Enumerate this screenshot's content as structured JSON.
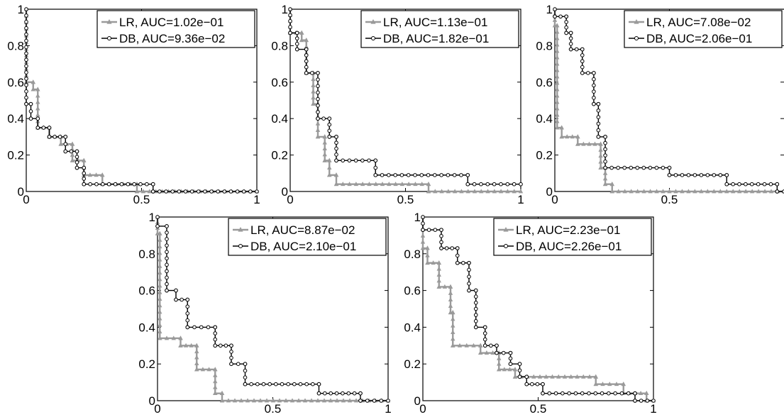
{
  "chart_data": [
    {
      "type": "line",
      "xlim": [
        0,
        1
      ],
      "ylim": [
        0,
        1
      ],
      "xticks": [
        "0",
        "0.5",
        "1"
      ],
      "yticks": [
        "0",
        "0.2",
        "0.4",
        "0.6",
        "0.8",
        "1"
      ],
      "legend_position": "top-right",
      "series": [
        {
          "name": "LR, AUC=1.02e−01",
          "color": "#9a9a9a",
          "marker": "triangle",
          "points": [
            [
              0,
              1
            ],
            [
              0,
              0.6
            ],
            [
              0.03,
              0.6
            ],
            [
              0.03,
              0.56
            ],
            [
              0.05,
              0.56
            ],
            [
              0.05,
              0.35
            ],
            [
              0.1,
              0.35
            ],
            [
              0.1,
              0.3
            ],
            [
              0.15,
              0.3
            ],
            [
              0.15,
              0.26
            ],
            [
              0.2,
              0.26
            ],
            [
              0.2,
              0.17
            ],
            [
              0.25,
              0.17
            ],
            [
              0.25,
              0.09
            ],
            [
              0.33,
              0.09
            ],
            [
              0.33,
              0.04
            ],
            [
              0.48,
              0.04
            ],
            [
              0.48,
              0
            ],
            [
              1,
              0
            ]
          ]
        },
        {
          "name": "DB, AUC=9.36e−02",
          "color": "#000000",
          "marker": "circle",
          "points": [
            [
              0,
              1
            ],
            [
              0,
              0.48
            ],
            [
              0.02,
              0.48
            ],
            [
              0.02,
              0.4
            ],
            [
              0.05,
              0.4
            ],
            [
              0.05,
              0.35
            ],
            [
              0.1,
              0.35
            ],
            [
              0.1,
              0.3
            ],
            [
              0.17,
              0.3
            ],
            [
              0.17,
              0.22
            ],
            [
              0.22,
              0.22
            ],
            [
              0.22,
              0.13
            ],
            [
              0.25,
              0.13
            ],
            [
              0.25,
              0.04
            ],
            [
              0.55,
              0.04
            ],
            [
              0.55,
              0
            ],
            [
              1,
              0
            ]
          ]
        }
      ]
    },
    {
      "type": "line",
      "xlim": [
        0,
        1
      ],
      "ylim": [
        0,
        1
      ],
      "xticks": [
        "0",
        "0.5",
        "1"
      ],
      "yticks": [
        "0",
        "0.2",
        "0.4",
        "0.6",
        "0.8",
        "1"
      ],
      "legend_position": "top-right",
      "series": [
        {
          "name": "LR, AUC=1.13e−01",
          "color": "#9a9a9a",
          "marker": "triangle",
          "points": [
            [
              0,
              1
            ],
            [
              0,
              0.87
            ],
            [
              0.05,
              0.87
            ],
            [
              0.05,
              0.83
            ],
            [
              0.07,
              0.83
            ],
            [
              0.07,
              0.65
            ],
            [
              0.1,
              0.65
            ],
            [
              0.1,
              0.48
            ],
            [
              0.12,
              0.48
            ],
            [
              0.12,
              0.3
            ],
            [
              0.15,
              0.3
            ],
            [
              0.15,
              0.17
            ],
            [
              0.17,
              0.17
            ],
            [
              0.17,
              0.09
            ],
            [
              0.2,
              0.09
            ],
            [
              0.2,
              0.04
            ],
            [
              0.6,
              0.04
            ],
            [
              0.6,
              0
            ],
            [
              1,
              0
            ]
          ]
        },
        {
          "name": "DB, AUC=1.82e−01",
          "color": "#000000",
          "marker": "circle",
          "points": [
            [
              0,
              1
            ],
            [
              0,
              0.87
            ],
            [
              0.03,
              0.87
            ],
            [
              0.03,
              0.78
            ],
            [
              0.07,
              0.78
            ],
            [
              0.07,
              0.65
            ],
            [
              0.12,
              0.65
            ],
            [
              0.12,
              0.4
            ],
            [
              0.17,
              0.4
            ],
            [
              0.17,
              0.3
            ],
            [
              0.2,
              0.3
            ],
            [
              0.2,
              0.17
            ],
            [
              0.37,
              0.17
            ],
            [
              0.37,
              0.09
            ],
            [
              0.77,
              0.09
            ],
            [
              0.77,
              0.04
            ],
            [
              1,
              0.04
            ]
          ]
        }
      ]
    },
    {
      "type": "line",
      "xlim": [
        0,
        1
      ],
      "ylim": [
        0,
        1
      ],
      "xticks": [
        "0",
        "0.5"
      ],
      "yticks": [
        "0",
        "0.2",
        "0.4",
        "0.6",
        "0.8",
        "1"
      ],
      "legend_position": "top-right",
      "series": [
        {
          "name": "LR, AUC=7.08e−02",
          "color": "#9a9a9a",
          "marker": "triangle",
          "points": [
            [
              0,
              1
            ],
            [
              0,
              0.91
            ],
            [
              0.01,
              0.91
            ],
            [
              0.01,
              0.35
            ],
            [
              0.03,
              0.35
            ],
            [
              0.03,
              0.3
            ],
            [
              0.1,
              0.3
            ],
            [
              0.1,
              0.26
            ],
            [
              0.2,
              0.26
            ],
            [
              0.2,
              0.13
            ],
            [
              0.22,
              0.13
            ],
            [
              0.22,
              0.04
            ],
            [
              0.25,
              0.04
            ],
            [
              0.25,
              0
            ],
            [
              1,
              0
            ]
          ]
        },
        {
          "name": "DB, AUC=2.06e−01",
          "color": "#000000",
          "marker": "circle",
          "points": [
            [
              0,
              1
            ],
            [
              0,
              0.96
            ],
            [
              0.05,
              0.96
            ],
            [
              0.05,
              0.87
            ],
            [
              0.07,
              0.87
            ],
            [
              0.07,
              0.78
            ],
            [
              0.12,
              0.78
            ],
            [
              0.12,
              0.65
            ],
            [
              0.17,
              0.65
            ],
            [
              0.17,
              0.48
            ],
            [
              0.19,
              0.48
            ],
            [
              0.19,
              0.3
            ],
            [
              0.22,
              0.3
            ],
            [
              0.22,
              0.13
            ],
            [
              0.5,
              0.13
            ],
            [
              0.5,
              0.09
            ],
            [
              0.75,
              0.09
            ],
            [
              0.75,
              0.04
            ],
            [
              0.97,
              0.04
            ],
            [
              0.97,
              0
            ],
            [
              1,
              0
            ]
          ]
        }
      ]
    },
    {
      "type": "line",
      "xlim": [
        0,
        1
      ],
      "ylim": [
        0,
        1
      ],
      "xticks": [
        "0",
        "0.5",
        "1"
      ],
      "yticks": [
        "0",
        "0.2",
        "0.4",
        "0.6",
        "0.8",
        "1"
      ],
      "legend_position": "top-right",
      "series": [
        {
          "name": "LR, AUC=8.87e−02",
          "color": "#9a9a9a",
          "marker": "triangle",
          "points": [
            [
              0,
              1
            ],
            [
              0,
              0.91
            ],
            [
              0.01,
              0.91
            ],
            [
              0.01,
              0.34
            ],
            [
              0.1,
              0.34
            ],
            [
              0.1,
              0.3
            ],
            [
              0.17,
              0.3
            ],
            [
              0.17,
              0.17
            ],
            [
              0.25,
              0.17
            ],
            [
              0.25,
              0.04
            ],
            [
              0.28,
              0.04
            ],
            [
              0.28,
              0
            ],
            [
              1,
              0
            ]
          ]
        },
        {
          "name": "DB, AUC=2.10e−01",
          "color": "#000000",
          "marker": "circle",
          "points": [
            [
              0,
              1
            ],
            [
              0,
              0.95
            ],
            [
              0.04,
              0.95
            ],
            [
              0.04,
              0.6
            ],
            [
              0.08,
              0.6
            ],
            [
              0.08,
              0.55
            ],
            [
              0.13,
              0.55
            ],
            [
              0.13,
              0.4
            ],
            [
              0.25,
              0.4
            ],
            [
              0.25,
              0.3
            ],
            [
              0.32,
              0.3
            ],
            [
              0.32,
              0.2
            ],
            [
              0.38,
              0.2
            ],
            [
              0.38,
              0.09
            ],
            [
              0.7,
              0.09
            ],
            [
              0.7,
              0.04
            ],
            [
              0.88,
              0.04
            ],
            [
              0.88,
              0
            ],
            [
              1,
              0
            ]
          ]
        }
      ]
    },
    {
      "type": "line",
      "xlim": [
        0,
        1
      ],
      "ylim": [
        0,
        1
      ],
      "xticks": [
        "0",
        "0.5",
        "1"
      ],
      "yticks": [
        "0",
        "0.2",
        "0.4",
        "0.6",
        "0.8",
        "1"
      ],
      "legend_position": "top-right",
      "series": [
        {
          "name": "LR, AUC=2.23e−01",
          "color": "#9a9a9a",
          "marker": "triangle",
          "points": [
            [
              0,
              1
            ],
            [
              0,
              0.83
            ],
            [
              0.02,
              0.83
            ],
            [
              0.02,
              0.75
            ],
            [
              0.07,
              0.75
            ],
            [
              0.07,
              0.62
            ],
            [
              0.12,
              0.62
            ],
            [
              0.12,
              0.48
            ],
            [
              0.13,
              0.48
            ],
            [
              0.13,
              0.3
            ],
            [
              0.25,
              0.3
            ],
            [
              0.25,
              0.26
            ],
            [
              0.33,
              0.26
            ],
            [
              0.33,
              0.17
            ],
            [
              0.4,
              0.17
            ],
            [
              0.4,
              0.13
            ],
            [
              0.75,
              0.13
            ],
            [
              0.75,
              0.09
            ],
            [
              0.87,
              0.09
            ],
            [
              0.87,
              0.04
            ],
            [
              0.97,
              0.04
            ],
            [
              0.97,
              0
            ],
            [
              1,
              0
            ]
          ]
        },
        {
          "name": "DB, AUC=2.26e−01",
          "color": "#000000",
          "marker": "circle",
          "points": [
            [
              0,
              1
            ],
            [
              0,
              0.93
            ],
            [
              0.08,
              0.93
            ],
            [
              0.08,
              0.83
            ],
            [
              0.15,
              0.83
            ],
            [
              0.15,
              0.75
            ],
            [
              0.2,
              0.75
            ],
            [
              0.2,
              0.6
            ],
            [
              0.23,
              0.6
            ],
            [
              0.23,
              0.4
            ],
            [
              0.27,
              0.4
            ],
            [
              0.27,
              0.3
            ],
            [
              0.32,
              0.3
            ],
            [
              0.32,
              0.26
            ],
            [
              0.38,
              0.26
            ],
            [
              0.38,
              0.2
            ],
            [
              0.42,
              0.2
            ],
            [
              0.42,
              0.13
            ],
            [
              0.45,
              0.13
            ],
            [
              0.45,
              0.09
            ],
            [
              0.52,
              0.09
            ],
            [
              0.52,
              0.04
            ],
            [
              0.92,
              0.04
            ],
            [
              0.92,
              0
            ],
            [
              1,
              0
            ]
          ]
        }
      ]
    }
  ]
}
